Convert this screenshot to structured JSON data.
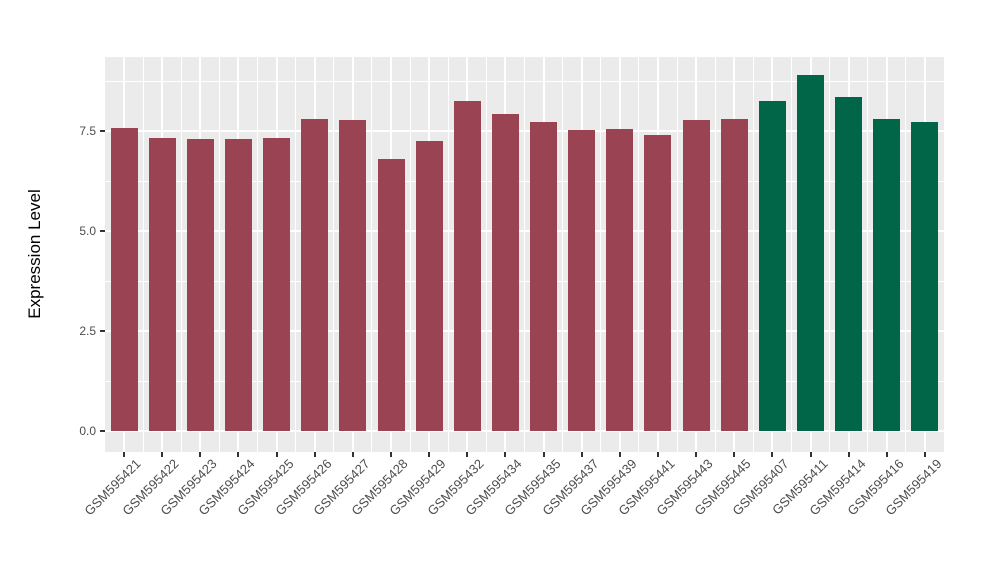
{
  "chart_data": {
    "type": "bar",
    "title": "",
    "xlabel": "",
    "ylabel": "Expression Level",
    "categories": [
      "GSM595421",
      "GSM595422",
      "GSM595423",
      "GSM595424",
      "GSM595425",
      "GSM595426",
      "GSM595427",
      "GSM595428",
      "GSM595429",
      "GSM595432",
      "GSM595434",
      "GSM595435",
      "GSM595437",
      "GSM595439",
      "GSM595441",
      "GSM595443",
      "GSM595445",
      "GSM595407",
      "GSM595411",
      "GSM595414",
      "GSM595416",
      "GSM595419"
    ],
    "values": [
      7.58,
      7.33,
      7.31,
      7.31,
      7.33,
      7.8,
      7.78,
      6.8,
      7.26,
      8.26,
      7.92,
      7.72,
      7.52,
      7.54,
      7.4,
      7.78,
      7.8,
      8.24,
      8.9,
      8.35,
      7.8,
      7.73
    ],
    "bar_colors": [
      "#9A4352",
      "#9A4352",
      "#9A4352",
      "#9A4352",
      "#9A4352",
      "#9A4352",
      "#9A4352",
      "#9A4352",
      "#9A4352",
      "#9A4352",
      "#9A4352",
      "#9A4352",
      "#9A4352",
      "#9A4352",
      "#9A4352",
      "#9A4352",
      "#9A4352",
      "#006647",
      "#006647",
      "#006647",
      "#006647",
      "#006647"
    ],
    "group_colors": {
      "maroon": "#9A4352",
      "green": "#006647"
    },
    "yticks_major": [
      0,
      2.5,
      5,
      7.5
    ],
    "ytick_labels": [
      "0.0",
      "2.5",
      "5.0",
      "7.5"
    ],
    "yticks_minor": [
      1.25,
      3.75,
      6.25,
      8.75
    ],
    "ylim": [
      -0.52,
      9.35
    ],
    "grid": "on",
    "legend": "none",
    "panel_background": "#EBEBEB",
    "grid_color": "#FFFFFF",
    "tick_mark_color": "#333333",
    "axis_text_color": "#4D4D4D",
    "axis_title_color": "#000000"
  }
}
